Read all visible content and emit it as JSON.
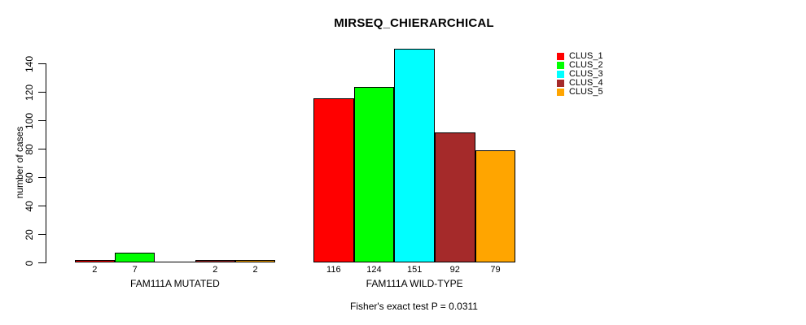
{
  "chart_data": {
    "type": "bar",
    "title": "MIRSEQ_CHIERARCHICAL",
    "ylabel": "number of cases",
    "xlabel": "",
    "categories": [
      "FAM111A MUTATED",
      "FAM111A WILD-TYPE"
    ],
    "series": [
      {
        "name": "CLUS_1",
        "color": "#FF0000",
        "values": [
          2,
          116
        ]
      },
      {
        "name": "CLUS_2",
        "color": "#00FF00",
        "values": [
          7,
          124
        ]
      },
      {
        "name": "CLUS_3",
        "color": "#00FFFF",
        "values": [
          0,
          151
        ]
      },
      {
        "name": "CLUS_4",
        "color": "#A52A2A",
        "values": [
          2,
          92
        ]
      },
      {
        "name": "CLUS_5",
        "color": "#FFA500",
        "values": [
          2,
          79
        ]
      }
    ],
    "bar_labels": [
      [
        "2",
        "7",
        "",
        "2",
        "2"
      ],
      [
        "116",
        "124",
        "151",
        "92",
        "79"
      ]
    ],
    "yticks": [
      0,
      20,
      40,
      60,
      80,
      100,
      120,
      140
    ],
    "ylim": [
      0,
      140
    ],
    "grid": false,
    "legend_position": "right",
    "annotation": "Fisher's exact test P = 0.0311",
    "bar_border_color": "#000000",
    "background_color": "#FFFFFF"
  }
}
